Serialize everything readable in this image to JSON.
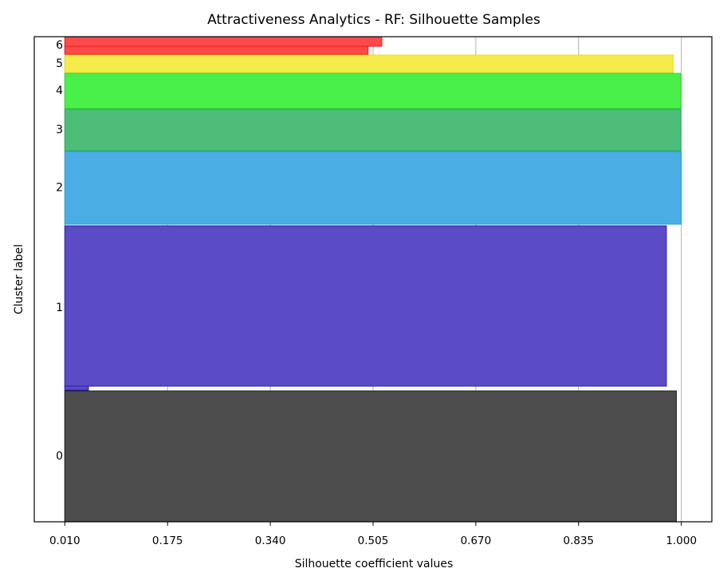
{
  "chart_data": {
    "type": "silhouette",
    "title": "Attractiveness Analytics - RF: Silhouette Samples",
    "x_label": "Silhouette coefficient values",
    "y_label": "Cluster label",
    "xlim": [
      -0.039,
      1.049
    ],
    "ylim": [
      0,
      608
    ],
    "xticks": [
      {
        "value": 0.01,
        "label": "0.010"
      },
      {
        "value": 0.175,
        "label": "0.175"
      },
      {
        "value": 0.34,
        "label": "0.340"
      },
      {
        "value": 0.505,
        "label": "0.505"
      },
      {
        "value": 0.67,
        "label": "0.670"
      },
      {
        "value": 0.835,
        "label": "0.835"
      },
      {
        "value": 1.0,
        "label": "1.000"
      }
    ],
    "grid": true,
    "series": [
      {
        "name": "0",
        "color": "#4d4d4d",
        "edge": "#1a1a1a",
        "y0": 0,
        "counts": [
          164
        ],
        "values": [
          0.992
        ]
      },
      {
        "name": "1",
        "color": "#5b4bc4",
        "edge": "#2b1bb5",
        "y0": 165,
        "counts": [
          5,
          201
        ],
        "values": [
          0.048,
          0.976
        ]
      },
      {
        "name": "2",
        "color": "#4aaee4",
        "edge": "#2a9ee0",
        "y0": 373,
        "counts": [
          91
        ],
        "values": [
          1.0
        ]
      },
      {
        "name": "3",
        "color": "#4dbd79",
        "edge": "#2aad5e",
        "y0": 465,
        "counts": [
          52
        ],
        "values": [
          0.999
        ]
      },
      {
        "name": "4",
        "color": "#4af04a",
        "edge": "#2ad82a",
        "y0": 518,
        "counts": [
          44
        ],
        "values": [
          0.999
        ]
      },
      {
        "name": "5",
        "color": "#f5eb4a",
        "edge": "#e8dc2a",
        "y0": 563,
        "counts": [
          22
        ],
        "values": [
          0.987
        ]
      },
      {
        "name": "6",
        "color": "#ff4a4a",
        "edge": "#e81a1a",
        "y0": 586,
        "counts": [
          10,
          12
        ],
        "values": [
          0.497,
          0.519
        ]
      }
    ]
  }
}
